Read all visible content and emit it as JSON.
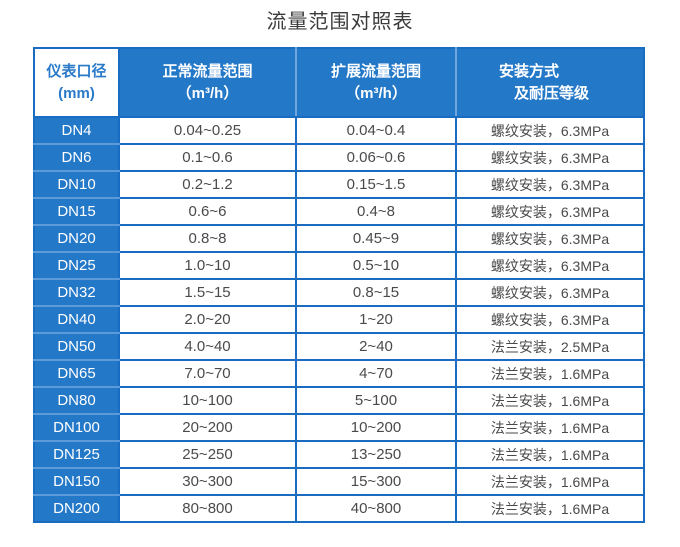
{
  "title": "流量范围对照表",
  "colors": {
    "table_blue": "#2478c8",
    "grid_border_blue": "#1a6bc2",
    "light_divider_blue": "#5c9ad8",
    "header_text_on_blue": "#ffffff",
    "header_text_on_white": "#2a7ac9",
    "body_text": "#4a4a4a",
    "title_text": "#3c3c3c",
    "page_background": "#ffffff"
  },
  "table": {
    "columns": [
      {
        "id": "diameter",
        "line1": "仪表口径",
        "line2": "(mm)"
      },
      {
        "id": "normal_flow",
        "line1": "正常流量范围",
        "line2": "（m³/h）"
      },
      {
        "id": "extended_flow",
        "line1": "扩展流量范围",
        "line2": "（m³/h）"
      },
      {
        "id": "installation",
        "line1": "安装方式",
        "line2": "及耐压等级"
      }
    ],
    "rows": [
      [
        "DN4",
        "0.04~0.25",
        "0.04~0.4",
        "螺纹安装，6.3MPa"
      ],
      [
        "DN6",
        "0.1~0.6",
        "0.06~0.6",
        "螺纹安装，6.3MPa"
      ],
      [
        "DN10",
        "0.2~1.2",
        "0.15~1.5",
        "螺纹安装，6.3MPa"
      ],
      [
        "DN15",
        "0.6~6",
        "0.4~8",
        "螺纹安装，6.3MPa"
      ],
      [
        "DN20",
        "0.8~8",
        "0.45~9",
        "螺纹安装，6.3MPa"
      ],
      [
        "DN25",
        "1.0~10",
        "0.5~10",
        "螺纹安装，6.3MPa"
      ],
      [
        "DN32",
        "1.5~15",
        "0.8~15",
        "螺纹安装，6.3MPa"
      ],
      [
        "DN40",
        "2.0~20",
        "1~20",
        "螺纹安装，6.3MPa"
      ],
      [
        "DN50",
        "4.0~40",
        "2~40",
        "法兰安装，2.5MPa"
      ],
      [
        "DN65",
        "7.0~70",
        "4~70",
        "法兰安装，1.6MPa"
      ],
      [
        "DN80",
        "10~100",
        "5~100",
        "法兰安装，1.6MPa"
      ],
      [
        "DN100",
        "20~200",
        "10~200",
        "法兰安装，1.6MPa"
      ],
      [
        "DN125",
        "25~250",
        "13~250",
        "法兰安装，1.6MPa"
      ],
      [
        "DN150",
        "30~300",
        "15~300",
        "法兰安装，1.6MPa"
      ],
      [
        "DN200",
        "80~800",
        "40~800",
        "法兰安装，1.6MPa"
      ]
    ]
  }
}
